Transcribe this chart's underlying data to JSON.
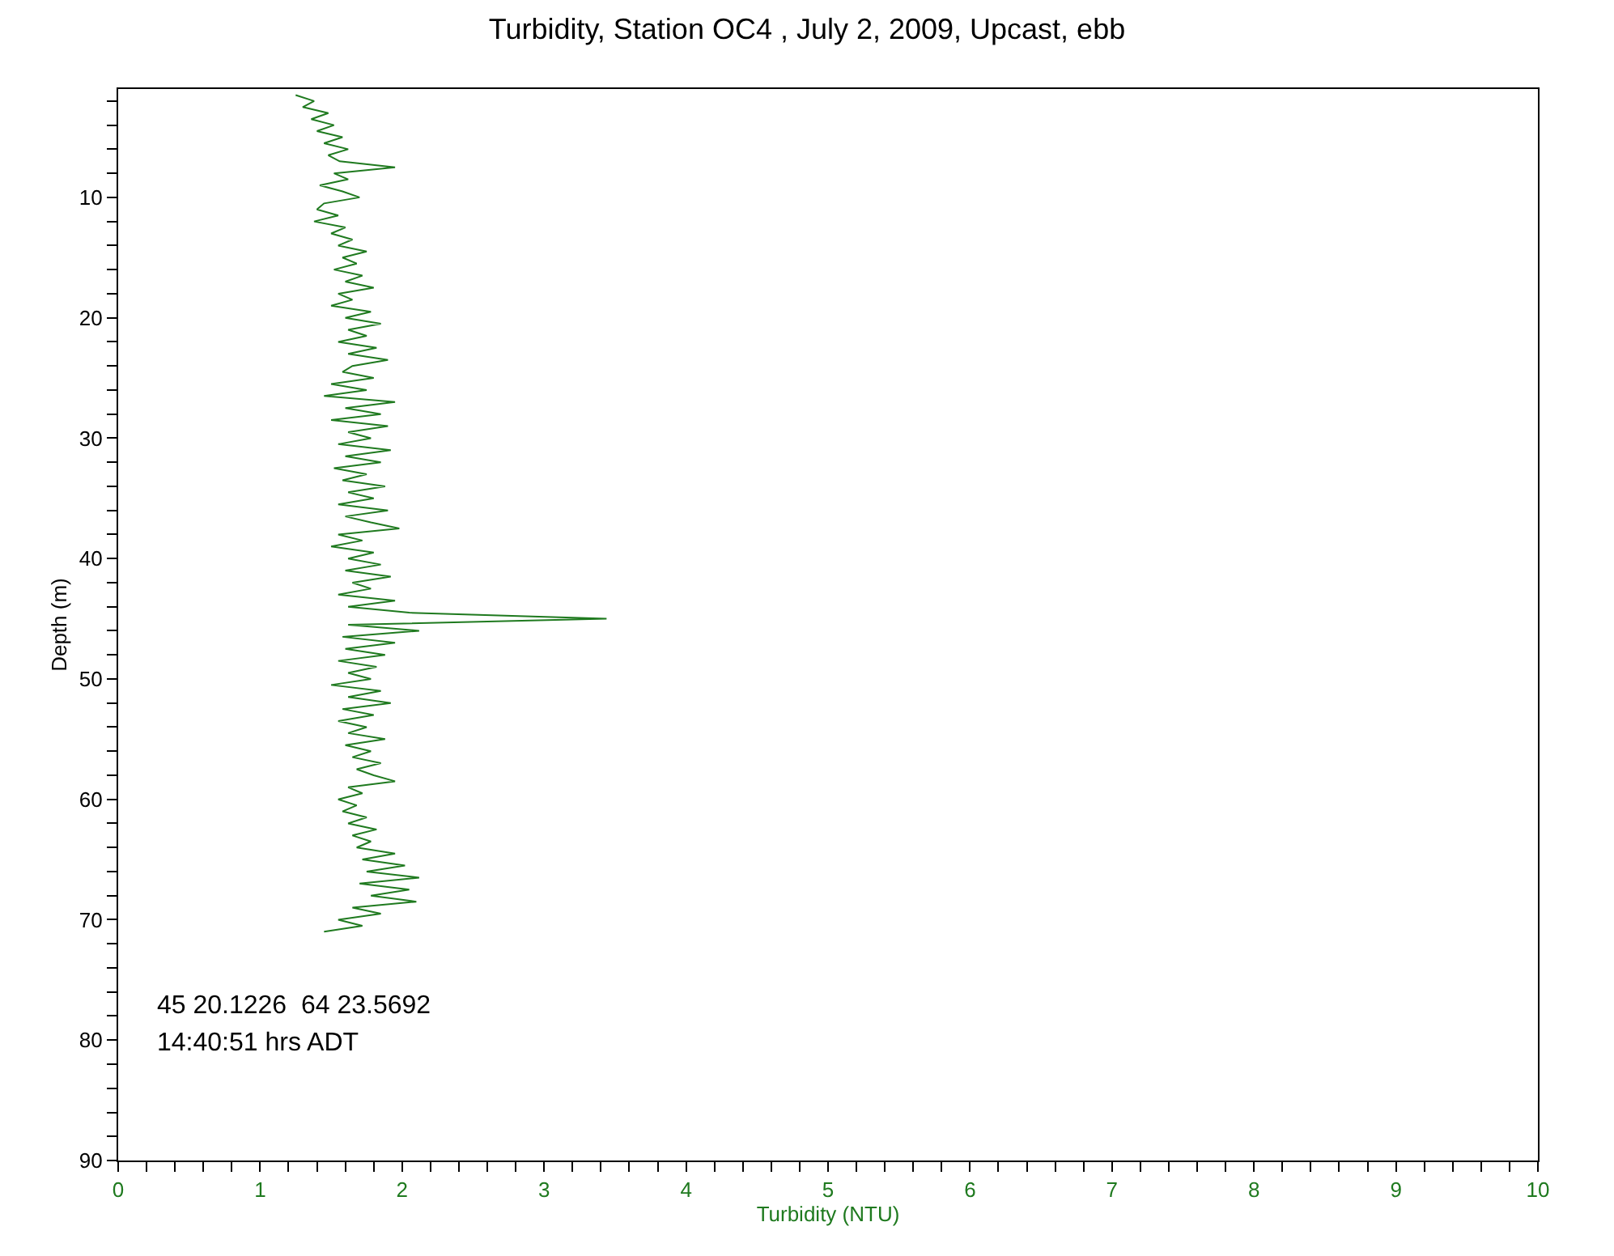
{
  "chart_data": {
    "type": "line",
    "title": "Turbidity, Station OC4 , July 2, 2009, Upcast, ebb",
    "xlabel": "Turbidity (NTU)",
    "ylabel": "Depth (m)",
    "annotations": [
      "45 20.1226  64 23.5692",
      "14:40:51 hrs ADT"
    ],
    "series": [
      {
        "color": "#1f7a1f",
        "x": [
          1.25,
          1.38,
          1.3,
          1.48,
          1.36,
          1.52,
          1.4,
          1.58,
          1.45,
          1.62,
          1.48,
          1.56,
          1.95,
          1.52,
          1.62,
          1.42,
          1.58,
          1.7,
          1.45,
          1.4,
          1.55,
          1.38,
          1.6,
          1.5,
          1.65,
          1.55,
          1.75,
          1.58,
          1.68,
          1.52,
          1.72,
          1.6,
          1.8,
          1.55,
          1.65,
          1.5,
          1.78,
          1.6,
          1.85,
          1.62,
          1.75,
          1.55,
          1.82,
          1.62,
          1.9,
          1.65,
          1.58,
          1.8,
          1.5,
          1.75,
          1.45,
          1.95,
          1.6,
          1.85,
          1.5,
          1.9,
          1.62,
          1.78,
          1.55,
          1.92,
          1.6,
          1.85,
          1.52,
          1.75,
          1.58,
          1.88,
          1.62,
          1.8,
          1.55,
          1.9,
          1.6,
          1.78,
          1.98,
          1.55,
          1.72,
          1.5,
          1.8,
          1.62,
          1.85,
          1.6,
          1.92,
          1.65,
          1.78,
          1.55,
          1.95,
          1.62,
          2.05,
          3.44,
          1.62,
          2.12,
          1.58,
          1.95,
          1.6,
          1.88,
          1.55,
          1.82,
          1.62,
          1.78,
          1.5,
          1.85,
          1.62,
          1.92,
          1.58,
          1.8,
          1.55,
          1.75,
          1.62,
          1.88,
          1.6,
          1.78,
          1.65,
          1.85,
          1.68,
          1.8,
          1.95,
          1.62,
          1.72,
          1.55,
          1.68,
          1.58,
          1.75,
          1.62,
          1.82,
          1.65,
          1.78,
          1.68,
          1.95,
          1.72,
          2.02,
          1.75,
          2.12,
          1.7,
          2.05,
          1.78,
          2.1,
          1.65,
          1.85,
          1.55,
          1.72,
          1.45
        ],
        "values": [
          1.5,
          2,
          2.5,
          3,
          3.5,
          4,
          4.5,
          5,
          5.5,
          6,
          6.5,
          7,
          7.5,
          8,
          8.5,
          9,
          9.5,
          10,
          10.5,
          11,
          11.5,
          12,
          12.5,
          13,
          13.5,
          14,
          14.5,
          15,
          15.5,
          16,
          16.5,
          17,
          17.5,
          18,
          18.5,
          19,
          19.5,
          20,
          20.5,
          21,
          21.5,
          22,
          22.5,
          23,
          23.5,
          24,
          24.5,
          25,
          25.5,
          26,
          26.5,
          27,
          27.5,
          28,
          28.5,
          29,
          29.5,
          30,
          30.5,
          31,
          31.5,
          32,
          32.5,
          33,
          33.5,
          34,
          34.5,
          35,
          35.5,
          36,
          36.5,
          37,
          37.5,
          38,
          38.5,
          39,
          39.5,
          40,
          40.5,
          41,
          41.5,
          42,
          42.5,
          43,
          43.5,
          44,
          44.5,
          45,
          45.5,
          46,
          46.5,
          47,
          47.5,
          48,
          48.5,
          49,
          49.5,
          50,
          50.5,
          51,
          51.5,
          52,
          52.5,
          53,
          53.5,
          54,
          54.5,
          55,
          55.5,
          56,
          56.5,
          57,
          57.5,
          58,
          58.5,
          59,
          59.5,
          60,
          60.5,
          61,
          61.5,
          62,
          62.5,
          63,
          63.5,
          64,
          64.5,
          65,
          65.5,
          66,
          66.5,
          67,
          67.5,
          68,
          68.5,
          69,
          69.5,
          70,
          70.5,
          71
        ]
      }
    ],
    "xlim": [
      0,
      10
    ],
    "xticks": [
      0,
      {
        "value": 0.2,
        "label": null
      },
      {
        "value": 0.4,
        "label": null
      },
      {
        "value": 0.6,
        "label": null
      },
      {
        "value": 0.8,
        "label": null
      },
      1,
      {
        "value": 1.2,
        "label": null
      },
      {
        "value": 1.4,
        "label": null
      },
      {
        "value": 1.6,
        "label": null
      },
      {
        "value": 1.8,
        "label": null
      },
      2,
      {
        "value": 2.2,
        "label": null
      },
      {
        "value": 2.4,
        "label": null
      },
      {
        "value": 2.6,
        "label": null
      },
      {
        "value": 2.8,
        "label": null
      },
      3,
      {
        "value": 3.2,
        "label": null
      },
      {
        "value": 3.4,
        "label": null
      },
      {
        "value": 3.6,
        "label": null
      },
      {
        "value": 3.8,
        "label": null
      },
      4,
      {
        "value": 4.2,
        "label": null
      },
      {
        "value": 4.4,
        "label": null
      },
      {
        "value": 4.6,
        "label": null
      },
      {
        "value": 4.8,
        "label": null
      },
      5,
      {
        "value": 5.2,
        "label": null
      },
      {
        "value": 5.4,
        "label": null
      },
      {
        "value": 5.6,
        "label": null
      },
      {
        "value": 5.8,
        "label": null
      },
      6,
      {
        "value": 6.2,
        "label": null
      },
      {
        "value": 6.4,
        "label": null
      },
      {
        "value": 6.6,
        "label": null
      },
      {
        "value": 6.8,
        "label": null
      },
      7,
      {
        "value": 7.2,
        "label": null
      },
      {
        "value": 7.4,
        "label": null
      },
      {
        "value": 7.6,
        "label": null
      },
      {
        "value": 7.8,
        "label": null
      },
      8,
      {
        "value": 8.2,
        "label": null
      },
      {
        "value": 8.4,
        "label": null
      },
      {
        "value": 8.6,
        "label": null
      },
      {
        "value": 8.8,
        "label": null
      },
      9,
      {
        "value": 9.2,
        "label": null
      },
      {
        "value": 9.4,
        "label": null
      },
      {
        "value": 9.6,
        "label": null
      },
      {
        "value": 9.8,
        "label": null
      },
      10
    ],
    "ylim": [
      90,
      1
    ],
    "yticks": [
      {
        "value": 2,
        "label": null
      },
      {
        "value": 4,
        "label": null
      },
      {
        "value": 6,
        "label": null
      },
      {
        "value": 8,
        "label": null
      },
      10,
      {
        "value": 12,
        "label": null
      },
      {
        "value": 14,
        "label": null
      },
      {
        "value": 16,
        "label": null
      },
      {
        "value": 18,
        "label": null
      },
      20,
      {
        "value": 22,
        "label": null
      },
      {
        "value": 24,
        "label": null
      },
      {
        "value": 26,
        "label": null
      },
      {
        "value": 28,
        "label": null
      },
      30,
      {
        "value": 32,
        "label": null
      },
      {
        "value": 34,
        "label": null
      },
      {
        "value": 36,
        "label": null
      },
      {
        "value": 38,
        "label": null
      },
      40,
      {
        "value": 42,
        "label": null
      },
      {
        "value": 44,
        "label": null
      },
      {
        "value": 46,
        "label": null
      },
      {
        "value": 48,
        "label": null
      },
      50,
      {
        "value": 52,
        "label": null
      },
      {
        "value": 54,
        "label": null
      },
      {
        "value": 56,
        "label": null
      },
      {
        "value": 58,
        "label": null
      },
      60,
      {
        "value": 62,
        "label": null
      },
      {
        "value": 64,
        "label": null
      },
      {
        "value": 66,
        "label": null
      },
      {
        "value": 68,
        "label": null
      },
      70,
      {
        "value": 72,
        "label": null
      },
      {
        "value": 74,
        "label": null
      },
      {
        "value": 76,
        "label": null
      },
      {
        "value": 78,
        "label": null
      },
      80,
      {
        "value": 82,
        "label": null
      },
      {
        "value": 84,
        "label": null
      },
      {
        "value": 86,
        "label": null
      },
      {
        "value": 88,
        "label": null
      },
      90
    ],
    "marker": "none",
    "line_style": "solid"
  }
}
